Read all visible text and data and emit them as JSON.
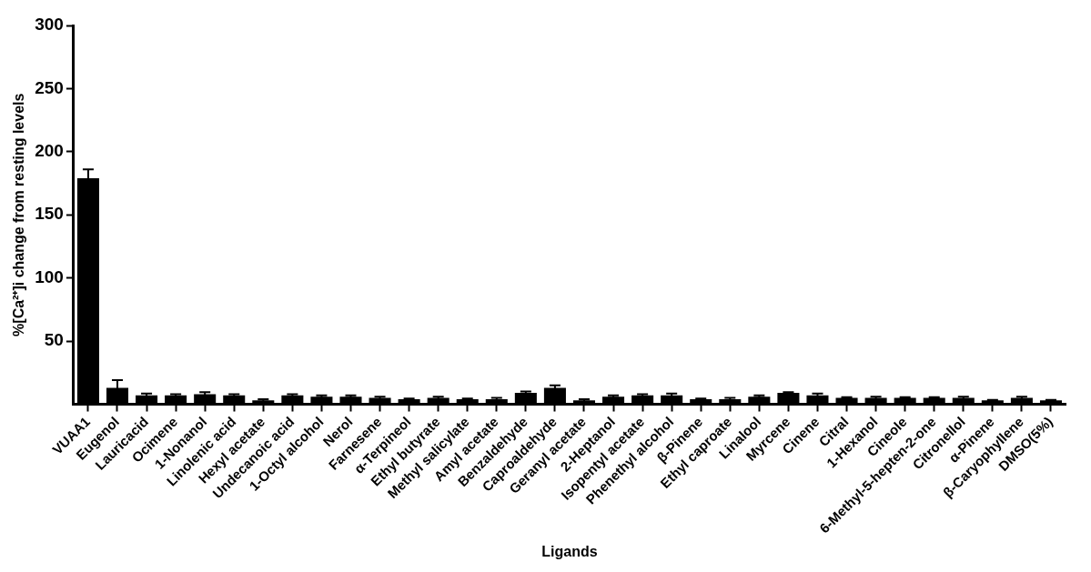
{
  "chart_data": {
    "type": "bar",
    "xlabel": "Ligands",
    "ylabel": "%[Ca²⁺]i change from resting levels",
    "categories": [
      "VUAA1",
      "Eugenol",
      "Lauricacid",
      "Ocimene",
      "1-Nonanol",
      "Linolenic acid",
      "Hexyl acetate",
      "Undecanoic acid",
      "1-Octyl alcohol",
      "Nerol",
      "Farnesene",
      "α-Terpineol",
      "Ethyl butyrate",
      "Methyl salicylate",
      "Amyl acetate",
      "Benzaldehyde",
      "Caproaldehyde",
      "Geranyl acetate",
      "2-Heptanol",
      "Isopentyl acetate",
      "Phenethyl alcohol",
      "β-Pinene",
      "Ethyl caproate",
      "Linalool",
      "Myrcene",
      "Cinene",
      "Citral",
      "1-Hexanol",
      "Cineole",
      "6-Methyl-5-hepten-2-one",
      "Citronellol",
      "α-Pinene",
      "β-Caryophyllene",
      "DMSO(5%)"
    ],
    "values": [
      179,
      13,
      7,
      7,
      8,
      7,
      3,
      7,
      6,
      6,
      5,
      4,
      5,
      4,
      4,
      9,
      13,
      3,
      6,
      7,
      7,
      4,
      4,
      6,
      9,
      7,
      5,
      5,
      5,
      5,
      5,
      3,
      5,
      3
    ],
    "errors": [
      7,
      6,
      1.5,
      1,
      1.5,
      1,
      1,
      1,
      1,
      1,
      1,
      0.5,
      1,
      0.5,
      1,
      1,
      2,
      1,
      1,
      1,
      1.5,
      0.5,
      1,
      1,
      0.5,
      1.5,
      0.5,
      1,
      0.5,
      0.5,
      1,
      0.5,
      1,
      0.5
    ],
    "color": "#000000",
    "ylim": [
      0,
      300
    ],
    "yticks": [
      50,
      100,
      150,
      200,
      250,
      300
    ],
    "grid": false,
    "legend": false
  }
}
